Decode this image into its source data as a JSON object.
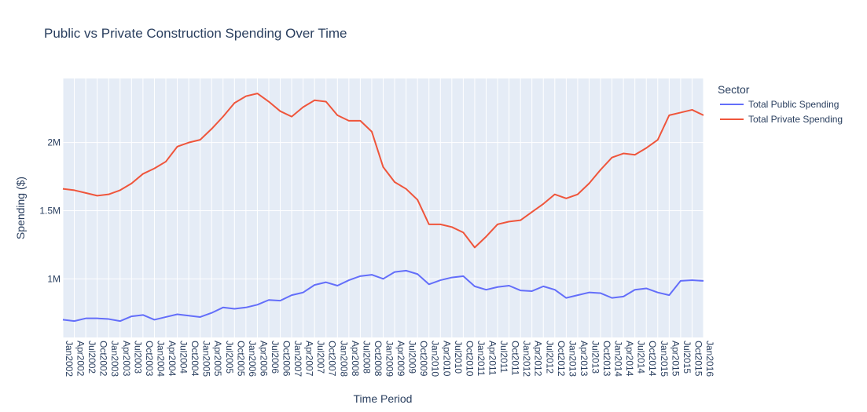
{
  "chart_data": {
    "type": "line",
    "title": "Public vs Private Construction Spending Over Time",
    "xlabel": "Time Period",
    "ylabel": "Spending ($)",
    "ylim": [
      570000,
      2470000
    ],
    "yticks": [
      1000000,
      1500000,
      2000000
    ],
    "ytick_labels": [
      "1M",
      "1.5M",
      "2M"
    ],
    "legend_title": "Sector",
    "legend_position": "right",
    "grid": true,
    "colors": {
      "plot_bg": "#E5ECF6",
      "grid": "#ffffff"
    },
    "x_start": "2002-01",
    "x_end": "2016-01",
    "x": [
      "Jan2002",
      "Apr2002",
      "Jul2002",
      "Oct2002",
      "Jan2003",
      "Apr2003",
      "Jul2003",
      "Oct2003",
      "Jan2004",
      "Apr2004",
      "Jul2004",
      "Oct2004",
      "Jan2005",
      "Apr2005",
      "Jul2005",
      "Oct2005",
      "Jan2006",
      "Apr2006",
      "Jul2006",
      "Oct2006",
      "Jan2007",
      "Apr2007",
      "Jul2007",
      "Oct2007",
      "Jan2008",
      "Apr2008",
      "Jul2008",
      "Oct2008",
      "Jan2009",
      "Apr2009",
      "Jul2009",
      "Oct2009",
      "Jan2010",
      "Apr2010",
      "Jul2010",
      "Oct2010",
      "Jan2011",
      "Apr2011",
      "Jul2011",
      "Oct2011",
      "Jan2012",
      "Apr2012",
      "Jul2012",
      "Oct2012",
      "Jan2013",
      "Apr2013",
      "Jul2013",
      "Oct2013",
      "Jan2014",
      "Apr2014",
      "Jul2014",
      "Oct2014",
      "Jan2015",
      "Apr2015",
      "Jul2015",
      "Oct2015",
      "Jan2016"
    ],
    "series": [
      {
        "name": "Total Public Spending",
        "color": "#636EFA",
        "values": [
          700000,
          690000,
          710000,
          710000,
          705000,
          690000,
          725000,
          735000,
          700000,
          720000,
          740000,
          730000,
          720000,
          750000,
          790000,
          780000,
          790000,
          810000,
          845000,
          840000,
          880000,
          900000,
          955000,
          975000,
          950000,
          990000,
          1020000,
          1030000,
          1000000,
          1050000,
          1060000,
          1035000,
          960000,
          990000,
          1010000,
          1020000,
          945000,
          920000,
          940000,
          950000,
          915000,
          910000,
          945000,
          920000,
          860000,
          880000,
          900000,
          895000,
          860000,
          870000,
          920000,
          930000,
          900000,
          880000,
          985000,
          990000,
          985000
        ]
      },
      {
        "name": "Total Private Spending",
        "color": "#EF553B",
        "values": [
          1660000,
          1650000,
          1630000,
          1610000,
          1620000,
          1650000,
          1700000,
          1770000,
          1810000,
          1860000,
          1970000,
          2000000,
          2020000,
          2100000,
          2190000,
          2290000,
          2340000,
          2360000,
          2300000,
          2230000,
          2190000,
          2260000,
          2310000,
          2300000,
          2200000,
          2160000,
          2160000,
          2080000,
          1820000,
          1710000,
          1660000,
          1580000,
          1400000,
          1400000,
          1380000,
          1340000,
          1230000,
          1310000,
          1400000,
          1420000,
          1430000,
          1490000,
          1550000,
          1620000,
          1590000,
          1620000,
          1700000,
          1800000,
          1890000,
          1920000,
          1910000,
          1960000,
          2020000,
          2200000,
          2220000,
          2240000,
          2200000
        ]
      }
    ]
  }
}
